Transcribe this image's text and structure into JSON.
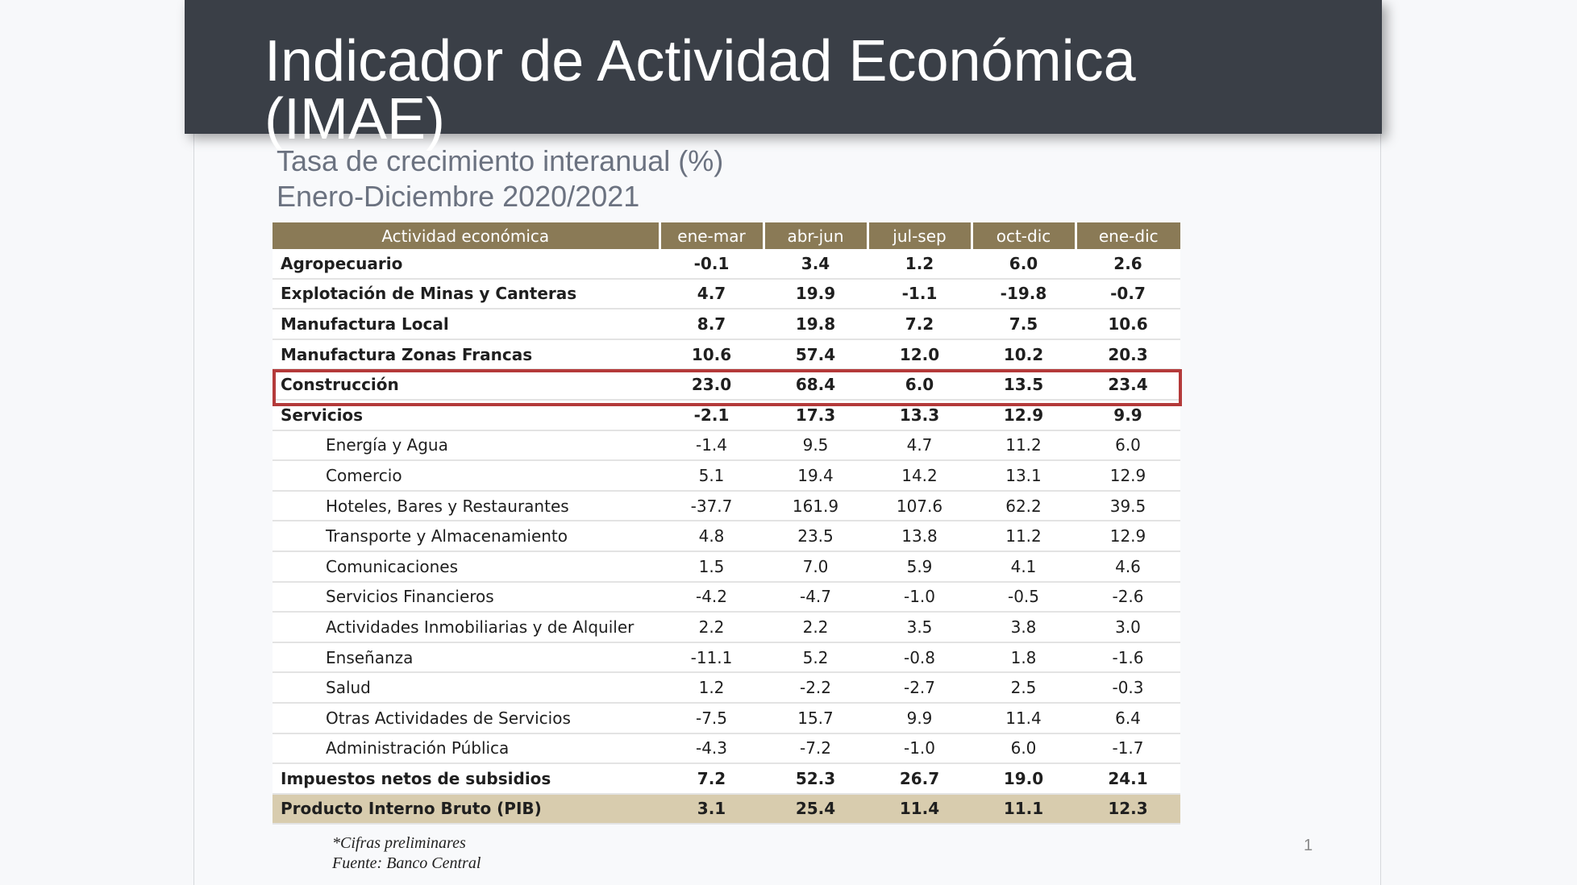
{
  "slide": {
    "title": "Indicador de Actividad Económica (IMAE)",
    "subtitle_line1": "Tasa de crecimiento interanual (%)",
    "subtitle_line2": "Enero-Diciembre 2020/2021",
    "footnote1": "*Cifras preliminares",
    "footnote2": "Fuente: Banco Central",
    "page_number": "1"
  },
  "table": {
    "headers": [
      "Actividad económica",
      "ene-mar",
      "abr-jun",
      "jul-sep",
      "oct-dic",
      "ene-dic"
    ],
    "highlight_color": "#b43a3a",
    "header_color": "#8a7a56",
    "total_row_color": "#d8ccae",
    "rows": [
      {
        "label": "Agropecuario",
        "values": [
          "-0.1",
          "3.4",
          "1.2",
          "6.0",
          "2.6"
        ]
      },
      {
        "label": "Explotación de Minas y Canteras",
        "values": [
          "4.7",
          "19.9",
          "-1.1",
          "-19.8",
          "-0.7"
        ]
      },
      {
        "label": "Manufactura Local",
        "values": [
          "8.7",
          "19.8",
          "7.2",
          "7.5",
          "10.6"
        ]
      },
      {
        "label": "Manufactura Zonas Francas",
        "values": [
          "10.6",
          "57.4",
          "12.0",
          "10.2",
          "20.3"
        ]
      },
      {
        "label": "Construcción",
        "values": [
          "23.0",
          "68.4",
          "6.0",
          "13.5",
          "23.4"
        ]
      },
      {
        "label": "Servicios",
        "values": [
          "-2.1",
          "17.3",
          "13.3",
          "12.9",
          "9.9"
        ]
      },
      {
        "label": "Energía y Agua",
        "values": [
          "-1.4",
          "9.5",
          "4.7",
          "11.2",
          "6.0"
        ]
      },
      {
        "label": "Comercio",
        "values": [
          "5.1",
          "19.4",
          "14.2",
          "13.1",
          "12.9"
        ]
      },
      {
        "label": "Hoteles, Bares y Restaurantes",
        "values": [
          "-37.7",
          "161.9",
          "107.6",
          "62.2",
          "39.5"
        ]
      },
      {
        "label": "Transporte y Almacenamiento",
        "values": [
          "4.8",
          "23.5",
          "13.8",
          "11.2",
          "12.9"
        ]
      },
      {
        "label": "Comunicaciones",
        "values": [
          "1.5",
          "7.0",
          "5.9",
          "4.1",
          "4.6"
        ]
      },
      {
        "label": "Servicios Financieros",
        "values": [
          "-4.2",
          "-4.7",
          "-1.0",
          "-0.5",
          "-2.6"
        ]
      },
      {
        "label": "Actividades Inmobiliarias y de Alquiler",
        "values": [
          "2.2",
          "2.2",
          "3.5",
          "3.8",
          "3.0"
        ]
      },
      {
        "label": "Enseñanza",
        "values": [
          "-11.1",
          "5.2",
          "-0.8",
          "1.8",
          "-1.6"
        ]
      },
      {
        "label": "Salud",
        "values": [
          "1.2",
          "-2.2",
          "-2.7",
          "2.5",
          "-0.3"
        ]
      },
      {
        "label": "Otras Actividades de Servicios",
        "values": [
          "-7.5",
          "15.7",
          "9.9",
          "11.4",
          "6.4"
        ]
      },
      {
        "label": "Administración Pública",
        "values": [
          "-4.3",
          "-7.2",
          "-1.0",
          "6.0",
          "-1.7"
        ]
      },
      {
        "label": "Impuestos netos de subsidios",
        "values": [
          "7.2",
          "52.3",
          "26.7",
          "19.0",
          "24.1"
        ]
      },
      {
        "label": "Producto Interno Bruto (PIB)",
        "values": [
          "3.1",
          "25.4",
          "11.4",
          "11.1",
          "12.3"
        ]
      }
    ]
  }
}
